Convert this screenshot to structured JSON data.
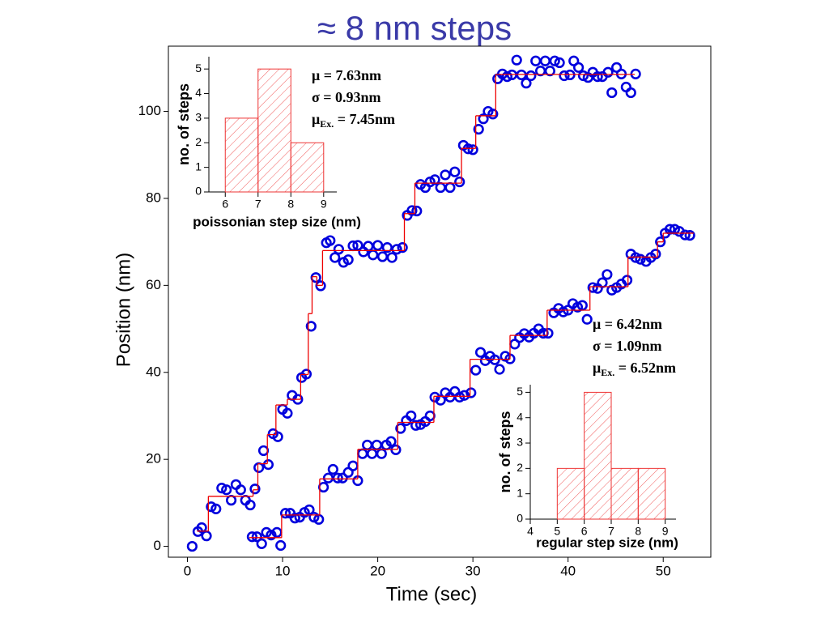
{
  "chart_data": [
    {
      "type": "scatter",
      "title": "≈ 8 nm steps",
      "xlabel": "Time (sec)",
      "ylabel": "Position (nm)",
      "xlim": [
        -2,
        55
      ],
      "ylim": [
        -2.5,
        115
      ],
      "xticks": [
        0,
        10,
        20,
        30,
        40,
        50
      ],
      "yticks": [
        0,
        20,
        40,
        60,
        80,
        100
      ],
      "series": [
        {
          "marker": "circle",
          "color": "#0000dd",
          "x": [
            0.5,
            1.1,
            1.5,
            2,
            2.5,
            3,
            3.6,
            4.1,
            4.6,
            5.1,
            5.6,
            6.1,
            6.6,
            7.1,
            7.5,
            8,
            8.5,
            9,
            9.5,
            10,
            10.5,
            11,
            11.6,
            12,
            12.5,
            13,
            13.5,
            14,
            14.6,
            15,
            15.5,
            15.9,
            16.4,
            16.9,
            17.4,
            17.9,
            18.5,
            19,
            19.5,
            20,
            20.5,
            21,
            21.5,
            22,
            22.6,
            23.1,
            23.6,
            24.1,
            24.5,
            25,
            25.5,
            26,
            26.6,
            27.1,
            27.6,
            28.1,
            28.6,
            29,
            29.5,
            30,
            30.6,
            31.1,
            31.6,
            32.1,
            32.6,
            33.1,
            33.6,
            34.1,
            34.6,
            35.1,
            35.6,
            36.1,
            36.6,
            37.1,
            37.6,
            38.1,
            38.6,
            39.1,
            39.6,
            40.2,
            40.6,
            41.1,
            41.6,
            42.1,
            42.6,
            43.1,
            43.6,
            44.2,
            44.6,
            45.1,
            45.6,
            46.1,
            46.6,
            47.1
          ],
          "values": [
            0,
            3.4,
            4.3,
            2.4,
            9.1,
            8.6,
            13.4,
            13,
            10.6,
            14.2,
            13,
            10.6,
            9.5,
            13.2,
            18.1,
            22,
            18.8,
            25.9,
            25.2,
            31.5,
            30.6,
            34.7,
            33.8,
            38.8,
            39.6,
            50.6,
            61.8,
            59.9,
            69.8,
            70.3,
            66.4,
            68.3,
            65.3,
            65.9,
            69.1,
            69.2,
            67.7,
            69,
            67,
            69.2,
            66.6,
            68.7,
            66.4,
            68.3,
            68.7,
            76.1,
            77.2,
            77.1,
            83.2,
            82.5,
            83.8,
            84.3,
            82.5,
            85.4,
            82.5,
            86.1,
            83.8,
            92.2,
            91.4,
            91.2,
            95.9,
            98.3,
            100,
            99.4,
            107.5,
            108.6,
            108,
            108.4,
            111.8,
            108.4,
            106.5,
            108.2,
            111.6,
            109.3,
            111.6,
            109.3,
            111.6,
            111.2,
            108.2,
            108.4,
            111.6,
            110.1,
            108.2,
            107.8,
            109,
            108,
            108,
            109,
            104.3,
            110.1,
            108.6,
            105.6,
            104.3,
            108.6
          ]
        },
        {
          "line": "step",
          "color": "#ee0000",
          "x": [
            1,
            2.2,
            6.9,
            7.4,
            8.4,
            9.3,
            10.5,
            11.9,
            12.7,
            13.1,
            13.6,
            14.2,
            22.8,
            23.9,
            28.8,
            30.3,
            32.4,
            47
          ],
          "values": [
            3.5,
            11.5,
            13,
            19,
            25.7,
            32.5,
            33.8,
            39.5,
            53.5,
            62,
            60,
            68,
            76.5,
            83.5,
            91.5,
            99,
            108.5,
            108.5
          ]
        },
        {
          "marker": "circle",
          "color": "#0000dd",
          "x": [
            6.8,
            7.3,
            7.8,
            8.3,
            8.8,
            9.4,
            9.8,
            10.3,
            10.8,
            11.3,
            11.8,
            12.3,
            12.8,
            13.3,
            13.8,
            14.3,
            14.8,
            15.3,
            15.8,
            16.3,
            16.9,
            17.4,
            17.9,
            18.4,
            18.9,
            19.4,
            19.9,
            20.4,
            20.9,
            21.4,
            21.9,
            22.4,
            23,
            23.5,
            24,
            24.5,
            25,
            25.5,
            26,
            26.6,
            27.1,
            27.6,
            28.1,
            28.6,
            29.1,
            29.8,
            30.3,
            30.8,
            31.3,
            31.8,
            32.3,
            32.8,
            33.4,
            33.9,
            34.4,
            34.9,
            35.4,
            35.9,
            36.4,
            36.9,
            37.4,
            37.9,
            38.5,
            39,
            39.5,
            40,
            40.5,
            41,
            41.5,
            42,
            42.6,
            43.1,
            43.6,
            44.1,
            44.6,
            45.1,
            45.6,
            46.2,
            46.6,
            47.1,
            47.6,
            48.2,
            48.7,
            49.2,
            49.7,
            50.2,
            50.7,
            51.2,
            51.7,
            52.3,
            52.8
          ],
          "values": [
            2.2,
            2.2,
            0.6,
            3.2,
            2.6,
            3.2,
            0.2,
            7.6,
            7.6,
            6.5,
            6.7,
            7.8,
            8.4,
            6.7,
            6.2,
            13.6,
            15.7,
            17.7,
            15.7,
            15.7,
            17,
            18.5,
            15.1,
            21.3,
            23.3,
            21.3,
            23.3,
            21.3,
            23.3,
            24.1,
            22.2,
            27.1,
            28.9,
            30,
            27.8,
            28,
            28.7,
            30,
            34.3,
            33.6,
            35.3,
            34.3,
            35.6,
            34.3,
            34.7,
            35.3,
            40.5,
            44.6,
            42.7,
            43.7,
            42.9,
            40.7,
            43.7,
            43.1,
            46.5,
            48,
            48.9,
            48.1,
            49,
            50,
            49,
            49,
            53.7,
            54.7,
            53.9,
            54.3,
            55.8,
            55,
            55.4,
            52.2,
            59.5,
            59.3,
            60.6,
            62.5,
            58.9,
            59.5,
            60.3,
            61.2,
            67.2,
            66.4,
            66,
            65.5,
            66.4,
            67.2,
            70,
            72,
            72.9,
            72.9,
            72.4,
            71.6,
            71.5
          ]
        },
        {
          "line": "step",
          "color": "#ee0000",
          "x": [
            6.5,
            9.9,
            13.9,
            17.9,
            22.1,
            25.9,
            29.7,
            33.9,
            37.8,
            42.3,
            46.3,
            49.4,
            50,
            53.2
          ],
          "values": [
            2,
            7.2,
            15.5,
            22.3,
            28.5,
            34.5,
            43,
            48.5,
            54.3,
            59.7,
            66.5,
            70,
            72,
            72
          ]
        }
      ]
    },
    {
      "type": "histogram",
      "xlabel": "poissonian step size (nm)",
      "ylabel": "no. of steps",
      "color": "#ee3333",
      "bins": [
        6,
        7,
        8,
        9
      ],
      "counts": [
        3,
        5,
        2
      ],
      "xlim": [
        5.5,
        9.4
      ],
      "ylim": [
        0,
        5.5
      ],
      "xticks": [
        6,
        7,
        8,
        9
      ],
      "yticks": [
        0,
        1,
        2,
        3,
        4,
        5
      ],
      "stats": [
        {
          "main": "μ = 7.63nm"
        },
        {
          "main": "σ = 0.93nm"
        },
        {
          "main": "μ",
          "sub": "Ex.",
          "rest": " = 7.45nm"
        }
      ]
    },
    {
      "type": "histogram",
      "xlabel": "regular step size (nm)",
      "ylabel": "no. of steps",
      "color": "#ee3333",
      "bins": [
        5,
        6,
        7,
        8,
        9
      ],
      "counts": [
        2,
        5,
        2,
        2
      ],
      "xlim": [
        4,
        9.4
      ],
      "ylim": [
        0,
        5.3
      ],
      "xticks": [
        4,
        5,
        6,
        7,
        8,
        9
      ],
      "yticks": [
        0,
        1,
        2,
        3,
        4,
        5
      ],
      "stats": [
        {
          "main": "μ = 6.42nm"
        },
        {
          "main": "σ = 1.09nm"
        },
        {
          "main": "μ",
          "sub": "Ex.",
          "rest": " = 6.52nm"
        }
      ]
    }
  ]
}
